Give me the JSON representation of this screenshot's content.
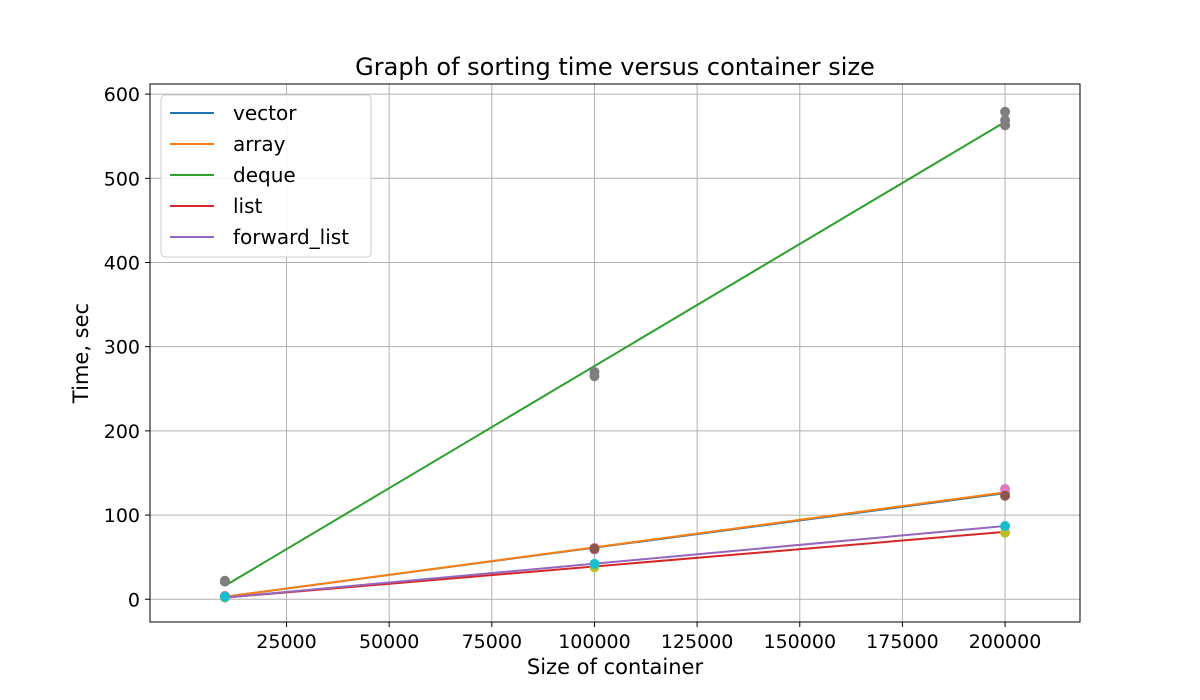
{
  "chart_data": {
    "type": "line",
    "title": "Graph of sorting time versus container size",
    "xlabel": "Size of container",
    "ylabel": "Time, sec",
    "xlim": [
      -8250,
      218250
    ],
    "ylim": [
      -27,
      612
    ],
    "xticks": [
      25000,
      50000,
      75000,
      100000,
      125000,
      150000,
      175000,
      200000
    ],
    "yticks": [
      0,
      100,
      200,
      300,
      400,
      500,
      600
    ],
    "grid": true,
    "legend_position": "upper-left",
    "series": [
      {
        "name": "vector",
        "color": "#1f77b4",
        "line": [
          [
            10000,
            3
          ],
          [
            200000,
            126
          ]
        ]
      },
      {
        "name": "array",
        "color": "#ff7f0e",
        "line": [
          [
            10000,
            3
          ],
          [
            200000,
            127
          ]
        ]
      },
      {
        "name": "deque",
        "color": "#2ca02c",
        "line": [
          [
            10000,
            16
          ],
          [
            200000,
            567
          ]
        ]
      },
      {
        "name": "list",
        "color": "#d62728",
        "line": [
          [
            10000,
            2
          ],
          [
            200000,
            80
          ]
        ]
      },
      {
        "name": "forward_list",
        "color": "#9467bd",
        "line": [
          [
            10000,
            2
          ],
          [
            200000,
            87
          ]
        ]
      }
    ],
    "scatter": [
      {
        "color": "#7f7f7f",
        "points": [
          [
            10000,
            21
          ],
          [
            10000,
            22
          ],
          [
            100000,
            265
          ],
          [
            100000,
            270
          ],
          [
            200000,
            563
          ],
          [
            200000,
            569
          ],
          [
            200000,
            579
          ]
        ]
      },
      {
        "color": "#e377c2",
        "points": [
          [
            10000,
            4
          ],
          [
            100000,
            59
          ],
          [
            100000,
            61
          ],
          [
            200000,
            126
          ],
          [
            200000,
            131
          ]
        ]
      },
      {
        "color": "#8c564b",
        "points": [
          [
            10000,
            3
          ],
          [
            100000,
            60
          ],
          [
            200000,
            123
          ]
        ]
      },
      {
        "color": "#bcbd22",
        "points": [
          [
            10000,
            2
          ],
          [
            100000,
            38
          ],
          [
            200000,
            79
          ]
        ]
      },
      {
        "color": "#17becf",
        "points": [
          [
            10000,
            3
          ],
          [
            100000,
            42
          ],
          [
            200000,
            87
          ]
        ]
      }
    ]
  }
}
